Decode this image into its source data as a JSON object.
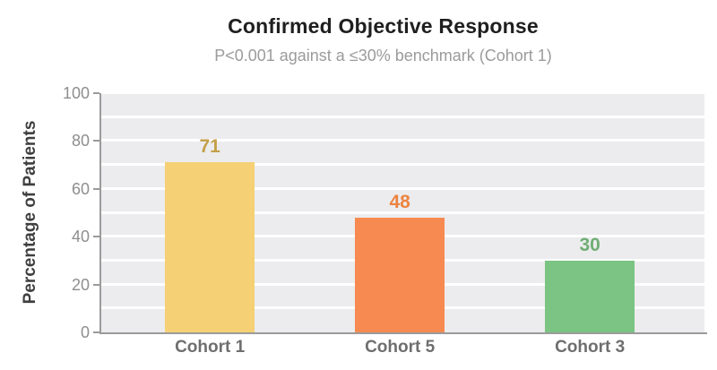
{
  "header": {
    "title": "Confirmed Objective Response",
    "subtitle": "P<0.001 against a ≤30% benchmark (Cohort 1)"
  },
  "chart_data": {
    "type": "bar",
    "title": "Confirmed Objective Response",
    "subtitle": "P<0.001 against a ≤30% benchmark (Cohort 1)",
    "categories": [
      "Cohort 1",
      "Cohort 5",
      "Cohort 3"
    ],
    "values": [
      71,
      48,
      30
    ],
    "value_labels": [
      "71",
      "48",
      "30"
    ],
    "xlabel": "",
    "ylabel": "Percentage of Patients",
    "ylim": [
      0,
      100
    ],
    "yticks": [
      0,
      20,
      40,
      60,
      80,
      100
    ],
    "gridline_step": 10,
    "grid": true,
    "legend": "none",
    "bar_colors": [
      "#F5D075",
      "#F78A50",
      "#7BC483"
    ],
    "value_label_colors": [
      "#C49F47",
      "#ED8440",
      "#6FAE74"
    ],
    "category_label_color": "#6E6E6E",
    "plot_background": "#ECECEE",
    "gridline_color": "#FFFFFF",
    "axis_color": "#9B9B9B"
  }
}
